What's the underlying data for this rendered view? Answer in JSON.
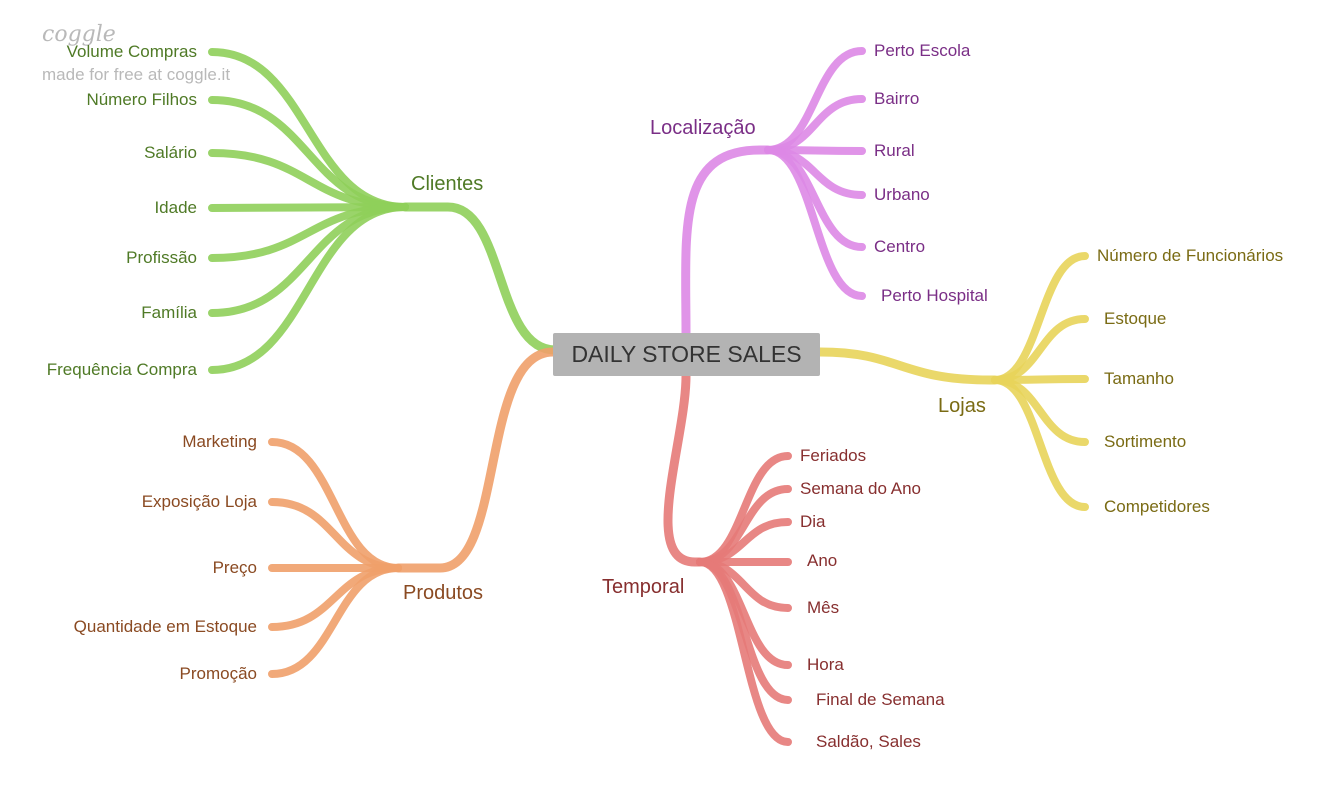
{
  "watermark": {
    "logo": "coggle",
    "text": "made for free at coggle.it"
  },
  "center": {
    "label": "DAILY STORE SALES"
  },
  "branches": {
    "clientes": {
      "label": "Clientes",
      "color": "#8fcf5a",
      "text_color": "#4f7a26",
      "items": [
        "Volume Compras",
        "Número Filhos",
        "Salário",
        "Idade",
        "Profissão",
        "Família",
        "Frequência Compra"
      ]
    },
    "produtos": {
      "label": "Produtos",
      "color": "#efa06a",
      "text_color": "#8a4a22",
      "items": [
        "Marketing",
        "Exposição Loja",
        "Preço",
        "Quantidade em Estoque",
        "Promoção"
      ]
    },
    "localizacao": {
      "label": "Localização",
      "color": "#dd88e6",
      "text_color": "#7a2e86",
      "items": [
        "Perto Escola",
        "Bairro",
        "Rural",
        "Urbano",
        "Centro",
        "Perto Hospital"
      ]
    },
    "lojas": {
      "label": "Lojas",
      "color": "#e8d45a",
      "text_color": "#7a6b14",
      "items": [
        "Número de Funcionários",
        "Estoque",
        "Tamanho",
        "Sortimento",
        "Competidores"
      ]
    },
    "temporal": {
      "label": "Temporal",
      "color": "#e67a78",
      "text_color": "#872f2f",
      "items": [
        "Feriados",
        "Semana do Ano",
        "Dia",
        "Ano",
        "Mês",
        "Hora",
        "Final de Semana",
        "Saldão, Sales"
      ]
    }
  }
}
